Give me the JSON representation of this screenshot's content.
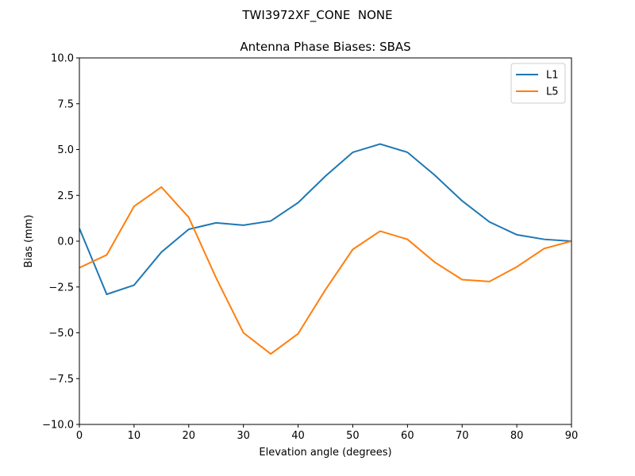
{
  "chart_data": {
    "type": "line",
    "suptitle": "TWI3972XF_CONE  NONE",
    "title": "Antenna Phase Biases: SBAS",
    "x_label": "Elevation angle (degrees)",
    "y_label": "Bias (mm)",
    "x": [
      0,
      5,
      10,
      15,
      20,
      25,
      30,
      35,
      40,
      45,
      50,
      55,
      60,
      65,
      70,
      75,
      80,
      85,
      90
    ],
    "series": [
      {
        "name": "L1",
        "color": "#1f77b4",
        "values": [
          0.7,
          -2.9,
          -2.4,
          -0.6,
          0.65,
          1.0,
          0.87,
          1.1,
          2.1,
          3.55,
          4.85,
          5.3,
          4.85,
          3.6,
          2.2,
          1.05,
          0.35,
          0.1,
          0.0
        ]
      },
      {
        "name": "L5",
        "color": "#ff7f0e",
        "values": [
          -1.45,
          -0.75,
          1.9,
          2.95,
          1.3,
          -2.0,
          -5.0,
          -6.15,
          -5.05,
          -2.65,
          -0.45,
          0.55,
          0.1,
          -1.15,
          -2.1,
          -2.2,
          -1.4,
          -0.4,
          0.0
        ]
      }
    ],
    "xlim": [
      0,
      90
    ],
    "xticks": [
      0,
      10,
      20,
      30,
      40,
      50,
      60,
      70,
      80,
      90
    ],
    "ylim": [
      -10,
      10
    ],
    "yticks": [
      {
        "value": -10,
        "label": "−10.0"
      },
      {
        "value": -7.5,
        "label": "−7.5"
      },
      {
        "value": -5,
        "label": "−5.0"
      },
      {
        "value": -2.5,
        "label": "−2.5"
      },
      {
        "value": 0,
        "label": "0.0"
      },
      2.5,
      {
        "value": 5,
        "label": "5.0"
      },
      7.5,
      {
        "value": 10,
        "label": "10.0"
      }
    ],
    "grid": false,
    "legend": "upper right"
  }
}
